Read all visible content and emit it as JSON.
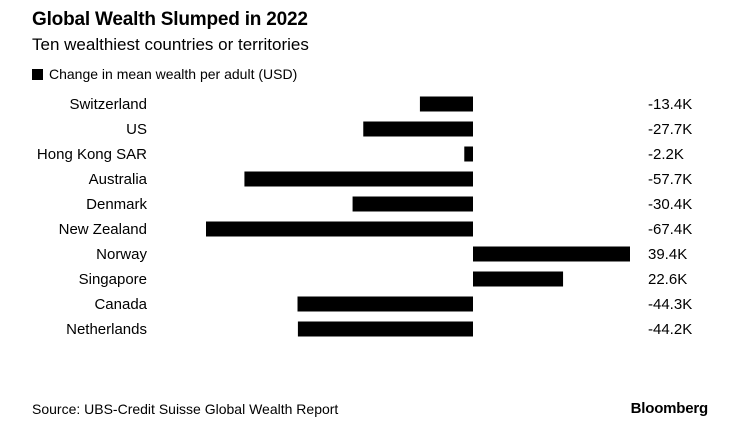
{
  "chart_data": {
    "type": "bar",
    "orientation": "horizontal",
    "title": "Global Wealth Slumped in 2022",
    "subtitle": "Ten wealthiest countries or territories",
    "legend": [
      {
        "label": "Change in mean wealth per adult (USD)",
        "color": "#000000"
      }
    ],
    "categories": [
      "Switzerland",
      "US",
      "Hong Kong SAR",
      "Australia",
      "Denmark",
      "New Zealand",
      "Norway",
      "Singapore",
      "Canada",
      "Netherlands"
    ],
    "values": [
      -13.4,
      -27.7,
      -2.2,
      -57.7,
      -30.4,
      -67.4,
      39.4,
      22.6,
      -44.3,
      -44.2
    ],
    "value_labels": [
      "-13.4K",
      "-27.7K",
      "-2.2K",
      "-57.7K",
      "-30.4K",
      "-67.4K",
      "39.4K",
      "22.6K",
      "-44.3K",
      "-44.2K"
    ],
    "unit": "K USD",
    "xlim": [
      -67.4,
      39.4
    ],
    "bar_color": "#000000",
    "grid": false
  },
  "footer": {
    "source": "Source: UBS-Credit Suisse Global Wealth Report",
    "brand": "Bloomberg"
  }
}
